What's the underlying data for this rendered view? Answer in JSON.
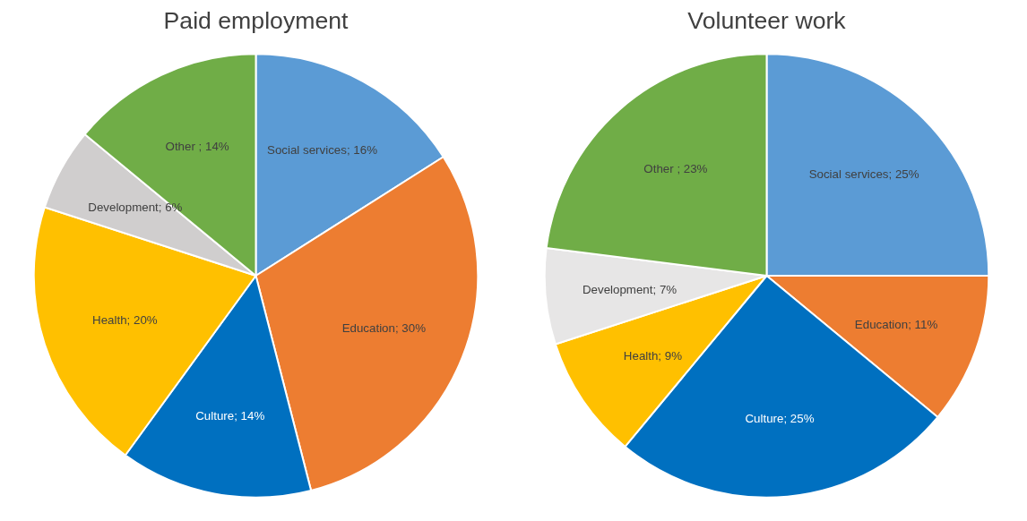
{
  "chart_data": [
    {
      "type": "pie",
      "title": "Paid employment",
      "categories": [
        "Social services",
        "Education",
        "Culture",
        "Health",
        "Development",
        "Other "
      ],
      "values": [
        16,
        30,
        14,
        20,
        6,
        14
      ],
      "value_labels": [
        "16%",
        "30%",
        "14%",
        "20%",
        "6%",
        "14%"
      ],
      "colors": [
        "#5b9bd5",
        "#ed7d31",
        "#0070c0",
        "#ffc000",
        "#d0cece",
        "#70ad47"
      ]
    },
    {
      "type": "pie",
      "title": "Volunteer work",
      "categories": [
        "Social services",
        "Education",
        "Culture",
        "Health",
        "Development",
        "Other "
      ],
      "values": [
        25,
        11,
        25,
        9,
        7,
        23
      ],
      "value_labels": [
        "25%",
        "11%",
        "25%",
        "9%",
        "7%",
        "23%"
      ],
      "colors": [
        "#5b9bd5",
        "#ed7d31",
        "#0070c0",
        "#ffc000",
        "#e7e6e6",
        "#70ad47"
      ]
    }
  ]
}
